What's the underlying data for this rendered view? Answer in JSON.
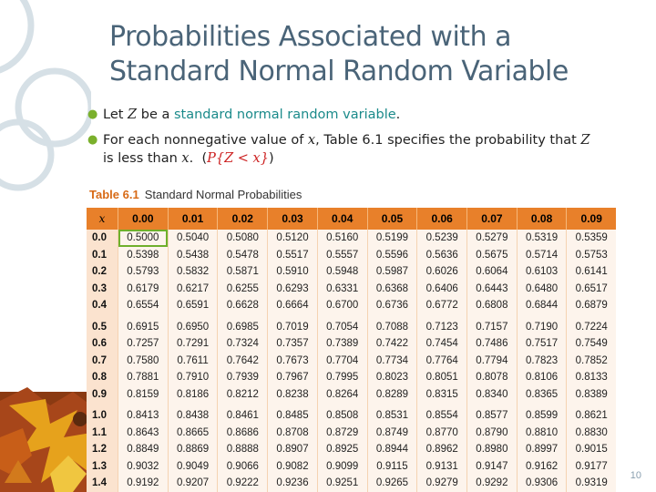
{
  "slide": {
    "title_line1": "Probabilities Associated with a",
    "title_line2": "Standard Normal Random Variable",
    "page_number": "10"
  },
  "bullets": {
    "b1_prefix": "Let ",
    "b1_var": "Z",
    "b1_mid": " be a ",
    "b1_link": "standard normal random variable",
    "b1_end": ".",
    "b2_prefix": "For each nonnegative value of ",
    "b2_var": "x",
    "b2_mid": ", Table 6.1 specifies the probability that ",
    "b2_var2": "Z",
    "b2_line2": "is less than ",
    "b2_var3": "x",
    "b2_dot": ".",
    "b2_open": "(",
    "b2_formula": "P{Z < x}",
    "b2_close": ")"
  },
  "table": {
    "number": "Table 6.1",
    "title": "Standard Normal Probabilities",
    "corner_label": "x",
    "columns": [
      "0.00",
      "0.01",
      "0.02",
      "0.03",
      "0.04",
      "0.05",
      "0.06",
      "0.07",
      "0.08",
      "0.09"
    ],
    "rows": [
      {
        "x": "0.0",
        "values": [
          "0.5000",
          "0.5040",
          "0.5080",
          "0.5120",
          "0.5160",
          "0.5199",
          "0.5239",
          "0.5279",
          "0.5319",
          "0.5359"
        ]
      },
      {
        "x": "0.1",
        "values": [
          "0.5398",
          "0.5438",
          "0.5478",
          "0.5517",
          "0.5557",
          "0.5596",
          "0.5636",
          "0.5675",
          "0.5714",
          "0.5753"
        ]
      },
      {
        "x": "0.2",
        "values": [
          "0.5793",
          "0.5832",
          "0.5871",
          "0.5910",
          "0.5948",
          "0.5987",
          "0.6026",
          "0.6064",
          "0.6103",
          "0.6141"
        ]
      },
      {
        "x": "0.3",
        "values": [
          "0.6179",
          "0.6217",
          "0.6255",
          "0.6293",
          "0.6331",
          "0.6368",
          "0.6406",
          "0.6443",
          "0.6480",
          "0.6517"
        ]
      },
      {
        "x": "0.4",
        "values": [
          "0.6554",
          "0.6591",
          "0.6628",
          "0.6664",
          "0.6700",
          "0.6736",
          "0.6772",
          "0.6808",
          "0.6844",
          "0.6879"
        ]
      },
      {
        "x": "0.5",
        "values": [
          "0.6915",
          "0.6950",
          "0.6985",
          "0.7019",
          "0.7054",
          "0.7088",
          "0.7123",
          "0.7157",
          "0.7190",
          "0.7224"
        ]
      },
      {
        "x": "0.6",
        "values": [
          "0.7257",
          "0.7291",
          "0.7324",
          "0.7357",
          "0.7389",
          "0.7422",
          "0.7454",
          "0.7486",
          "0.7517",
          "0.7549"
        ]
      },
      {
        "x": "0.7",
        "values": [
          "0.7580",
          "0.7611",
          "0.7642",
          "0.7673",
          "0.7704",
          "0.7734",
          "0.7764",
          "0.7794",
          "0.7823",
          "0.7852"
        ]
      },
      {
        "x": "0.8",
        "values": [
          "0.7881",
          "0.7910",
          "0.7939",
          "0.7967",
          "0.7995",
          "0.8023",
          "0.8051",
          "0.8078",
          "0.8106",
          "0.8133"
        ]
      },
      {
        "x": "0.9",
        "values": [
          "0.8159",
          "0.8186",
          "0.8212",
          "0.8238",
          "0.8264",
          "0.8289",
          "0.8315",
          "0.8340",
          "0.8365",
          "0.8389"
        ]
      },
      {
        "x": "1.0",
        "values": [
          "0.8413",
          "0.8438",
          "0.8461",
          "0.8485",
          "0.8508",
          "0.8531",
          "0.8554",
          "0.8577",
          "0.8599",
          "0.8621"
        ]
      },
      {
        "x": "1.1",
        "values": [
          "0.8643",
          "0.8665",
          "0.8686",
          "0.8708",
          "0.8729",
          "0.8749",
          "0.8770",
          "0.8790",
          "0.8810",
          "0.8830"
        ]
      },
      {
        "x": "1.2",
        "values": [
          "0.8849",
          "0.8869",
          "0.8888",
          "0.8907",
          "0.8925",
          "0.8944",
          "0.8962",
          "0.8980",
          "0.8997",
          "0.9015"
        ]
      },
      {
        "x": "1.3",
        "values": [
          "0.9032",
          "0.9049",
          "0.9066",
          "0.9082",
          "0.9099",
          "0.9115",
          "0.9131",
          "0.9147",
          "0.9162",
          "0.9177"
        ]
      },
      {
        "x": "1.4",
        "values": [
          "0.9192",
          "0.9207",
          "0.9222",
          "0.9236",
          "0.9251",
          "0.9265",
          "0.9279",
          "0.9292",
          "0.9306",
          "0.9319"
        ]
      }
    ],
    "highlighted_cell": {
      "row": 0,
      "col": 0
    }
  },
  "colors": {
    "title": "#4a6478",
    "bullet_marker": "#7ab02c",
    "link_text": "#1a8a8a",
    "formula": "#cc1f1f",
    "table_header": "#e8802a",
    "table_number": "#d86a16",
    "highlight_border": "#6fb02c"
  },
  "icons": {
    "bullet": "round-bullet-icon",
    "decoration": "autumn-leaves-and-rings-decoration"
  }
}
